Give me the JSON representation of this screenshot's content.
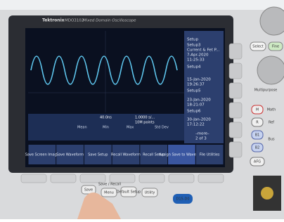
{
  "brand": "Tektronix",
  "model": "MDO3102",
  "model_desc": "Mixed Domain Oscilloscope",
  "side_menu": {
    "title": "Setup",
    "items": [
      {
        "label": "Setup3",
        "detail": "Current & Fet P...",
        "date": "7-Apr-2020",
        "time": "11:25:33"
      },
      {
        "label": "Setup4",
        "date": "15-Jan-2020",
        "time": "19:26:37"
      },
      {
        "label": "Setup5",
        "date": "23-Jan-2020",
        "time": "18:21:07"
      },
      {
        "label": "Setup6",
        "date": "30-Jan-2020",
        "time": "17:12:22"
      }
    ],
    "more": "–more–",
    "page": "2 of 3"
  },
  "bottom_menu": [
    "Save Screen Image",
    "Save Waveform",
    "Save Setup",
    "Recall Waveform",
    "Recall Setup",
    "Assign Save to Waveform",
    "File Utilities"
  ],
  "readout": {
    "timebase": "40.0ns",
    "rate": "1.0000 s/...",
    "points": "10M points",
    "cols": [
      "Mean",
      "Min",
      "Max",
      "Std Dev"
    ]
  },
  "buttons": {
    "save": "Save",
    "menu": "Menu",
    "save_recall": "Save / Recall",
    "default": "Default Setup",
    "utility": "Utility",
    "digital": "D15-D0",
    "m": "M",
    "math": "Math",
    "r": "R",
    "ref": "Ref",
    "b1": "B1",
    "b2": "B2",
    "bus": "Bus",
    "afg": "AFG",
    "select": "Select",
    "fine": "Fine",
    "multipurpose": "Multipurpose"
  }
}
